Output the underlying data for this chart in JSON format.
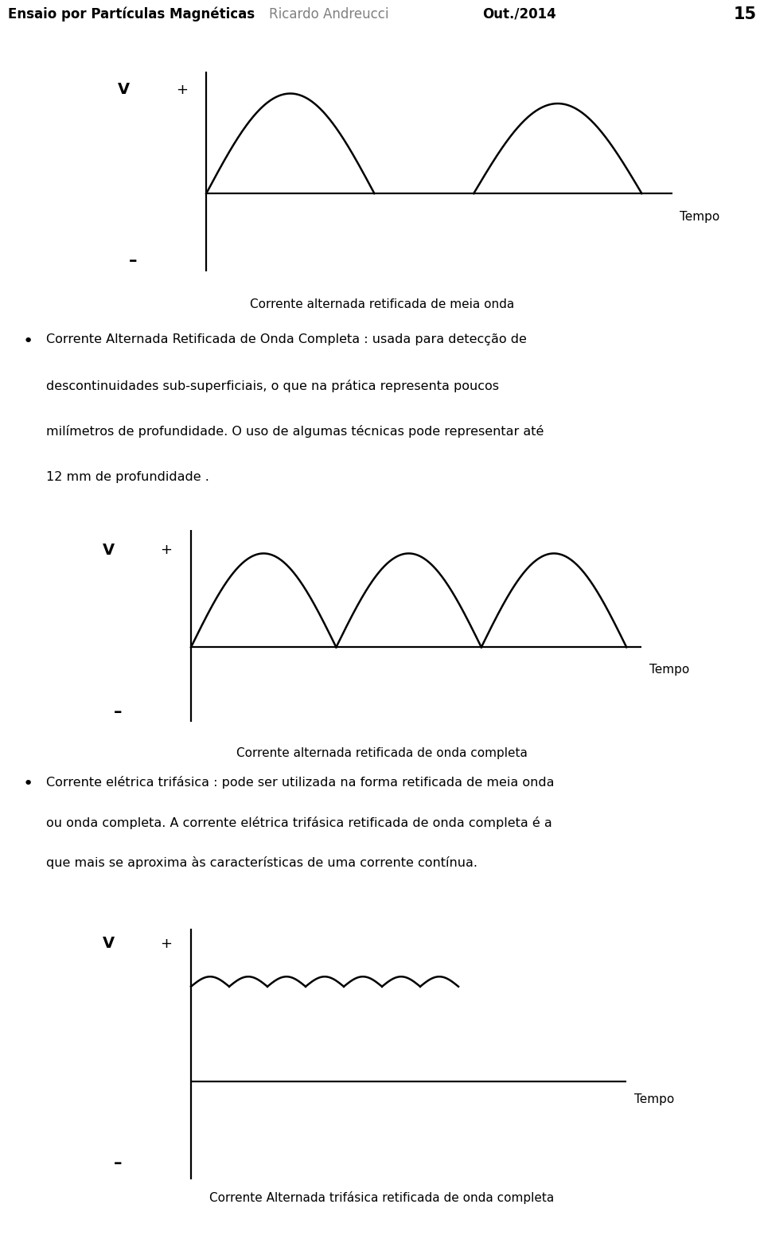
{
  "header_left": "Ensaio por Partículas Magnéticas",
  "header_center": "Ricardo Andreucci",
  "header_right": "Out./2014",
  "header_page": "15",
  "header_bar_color": "#2e34a0",
  "background_color": "#ffffff",
  "chart1_caption": "Corrente alternada retificada de meia onda",
  "chart2_caption": "Corrente alternada retificada de onda completa",
  "chart3_caption": "Corrente Alternada trifásica retificada de onda completa",
  "text1_line1": "Corrente Alternada Retificada de Onda Completa : usada para detecção de",
  "text1_line2": "descontinuidades sub-superficiais, o que na prática representa poucos",
  "text1_line3": "milímetros de profundidade. O uso de algumas técnicas pode representar até",
  "text1_line4": "12 mm de profundidade .",
  "text2_line1": "Corrente elétrica trifásica : pode ser utilizada na forma retificada de meia onda",
  "text2_line2": "ou onda completa. A corrente elétrica trifásica retificada de onda completa é a",
  "text2_line3": "que mais se aproxima às características de uma corrente contínua.",
  "line_color": "#000000",
  "text_color": "#000000",
  "fig_width": 9.6,
  "fig_height": 15.67,
  "dpi": 100
}
